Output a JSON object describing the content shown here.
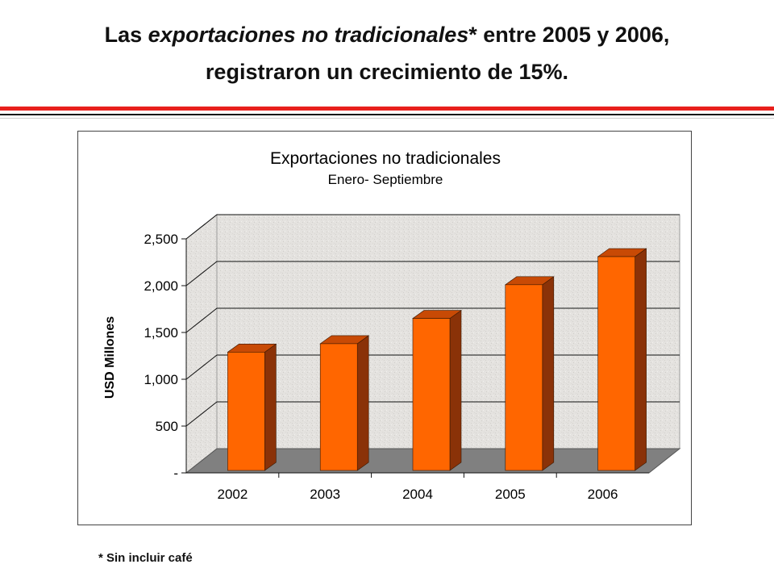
{
  "slide": {
    "title_prefix": "Las ",
    "title_italic": "exportaciones no tradicionales",
    "title_suffix": "* entre 2005 y 2006,",
    "title_line2": "registraron un crecimiento de 15%.",
    "footnote": "* Sin incluir café"
  },
  "colors": {
    "accent_rule": "#e8201c",
    "bar_front": "#ff6600",
    "bar_side": "#8a3208",
    "bar_top": "#c84a05",
    "floor": "#808080",
    "wall": "#e4e2df"
  },
  "chart_data": {
    "type": "bar",
    "title": "Exportaciones no tradicionales",
    "subtitle": "Enero- Septiembre",
    "ylabel": "USD Millones",
    "xlabel": "",
    "categories": [
      "2002",
      "2003",
      "2004",
      "2005",
      "2006"
    ],
    "values": [
      1290,
      1380,
      1650,
      2010,
      2310
    ],
    "ylim": [
      0,
      2500
    ],
    "yticks": [
      0,
      500,
      1000,
      1500,
      2000,
      2500
    ],
    "ytick_labels": [
      "-",
      "500",
      "1,000",
      "1,500",
      "2,000",
      "2,500"
    ],
    "grid": true,
    "legend": "none",
    "style": "3d-bar"
  }
}
